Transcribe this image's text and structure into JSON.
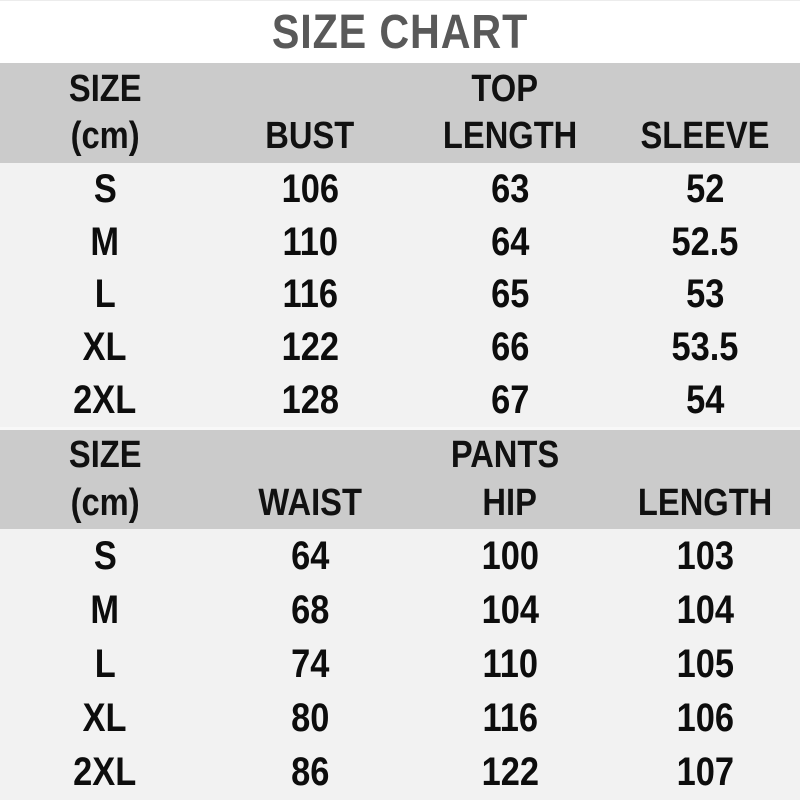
{
  "title": "SIZE CHART",
  "colors": {
    "title_text": "#595959",
    "header_bg": "#cbcbcb",
    "row_bg": "#f2f2f2",
    "text": "#0d0d0d"
  },
  "chart_data": [
    {
      "type": "table",
      "section": "TOP",
      "row_header": {
        "line1": "SIZE",
        "line2": "(cm)"
      },
      "columns": [
        "BUST",
        "LENGTH",
        "SLEEVE"
      ],
      "sizes": [
        "S",
        "M",
        "L",
        "XL",
        "2XL"
      ],
      "rows": [
        [
          "106",
          "63",
          "52"
        ],
        [
          "110",
          "64",
          "52.5"
        ],
        [
          "116",
          "65",
          "53"
        ],
        [
          "122",
          "66",
          "53.5"
        ],
        [
          "128",
          "67",
          "54"
        ]
      ]
    },
    {
      "type": "table",
      "section": "PANTS",
      "row_header": {
        "line1": "SIZE",
        "line2": "(cm)"
      },
      "columns": [
        "WAIST",
        "HIP",
        "LENGTH"
      ],
      "sizes": [
        "S",
        "M",
        "L",
        "XL",
        "2XL"
      ],
      "rows": [
        [
          "64",
          "100",
          "103"
        ],
        [
          "68",
          "104",
          "104"
        ],
        [
          "74",
          "110",
          "105"
        ],
        [
          "80",
          "116",
          "106"
        ],
        [
          "86",
          "122",
          "107"
        ]
      ]
    }
  ]
}
